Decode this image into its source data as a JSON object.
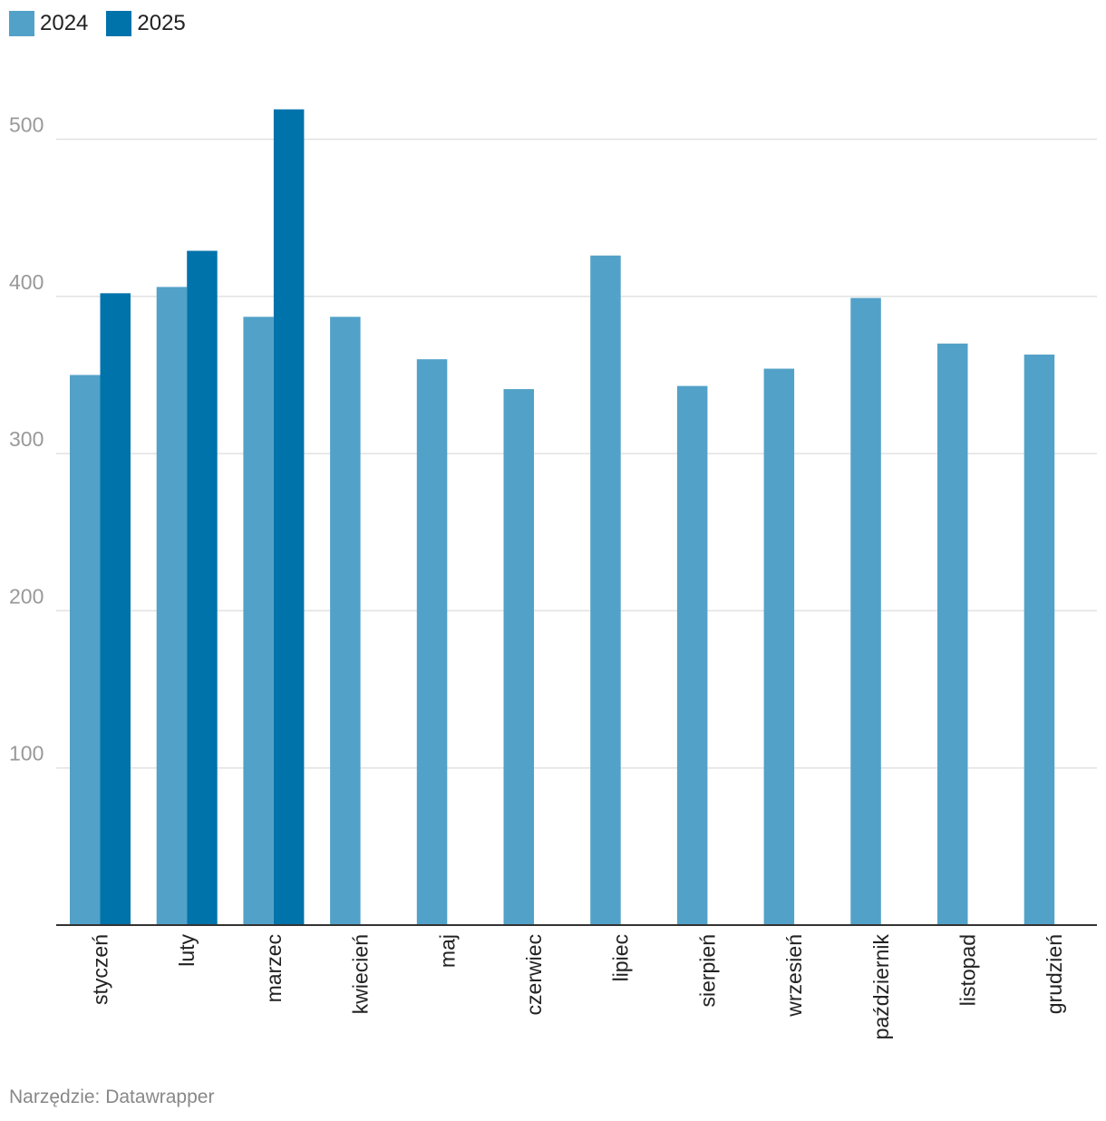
{
  "chart_data": {
    "type": "bar",
    "categories": [
      "styczeń",
      "luty",
      "marzec",
      "kwiecień",
      "maj",
      "czerwiec",
      "lipiec",
      "sierpień",
      "wrzesień",
      "październik",
      "listopad",
      "grudzień"
    ],
    "series": [
      {
        "name": "2024",
        "color": "#52a1c8",
        "values": [
          350,
          406,
          387,
          387,
          360,
          341,
          426,
          343,
          354,
          399,
          370,
          363
        ]
      },
      {
        "name": "2025",
        "color": "#0073ab",
        "values": [
          402,
          429,
          519,
          null,
          null,
          null,
          null,
          null,
          null,
          null,
          null,
          null
        ]
      }
    ],
    "yticks": [
      100,
      200,
      300,
      400,
      500
    ],
    "ylim": [
      0,
      540
    ],
    "grid": true,
    "legend_position": "top-left",
    "title": "",
    "xlabel": "",
    "ylabel": ""
  },
  "footer": {
    "source": "Narzędzie: Datawrapper"
  }
}
